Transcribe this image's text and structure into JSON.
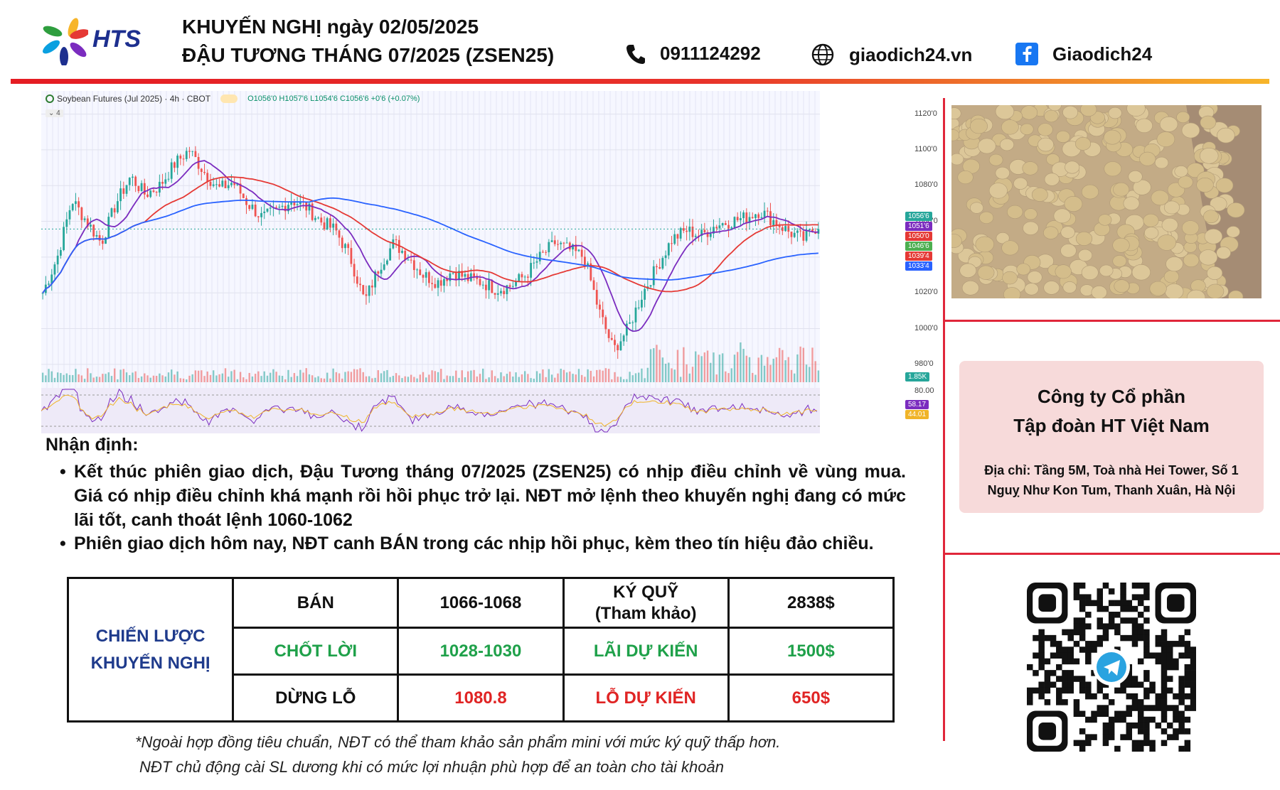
{
  "header": {
    "brand": "HTS",
    "title_line1": "KHUYẾN NGHỊ ngày 02/05/2025",
    "title_line2": "ĐẬU TƯƠNG THÁNG 07/2025 (ZSEN25)",
    "phone": "0911124292",
    "website": "giaodich24.vn",
    "facebook": "Giaodich24",
    "icons": [
      "phone-icon",
      "globe-icon",
      "facebook-icon"
    ]
  },
  "chart": {
    "legend_title": "Soybean Futures (Jul 2025) · 4h · CBOT",
    "legend_ohlc": "O1056'0 H1057'6 L1054'6 C1056'6 +0'6 (+0.07%)",
    "legend_sub": "4",
    "colors": {
      "up": "#26a69a",
      "down": "#ef5350",
      "ma_fast": "#7b2cbf",
      "ma_mid": "#e53935",
      "ma_slow": "#2962ff"
    }
  },
  "chart_data": {
    "type": "line",
    "title": "Soybean Futures (Jul 2025) · 4h · CBOT",
    "xlabel": "",
    "ylabel": "",
    "ylim": [
      970,
      1125
    ],
    "yticks": [
      "1120'0",
      "1100'0",
      "1080'0",
      "1060'0",
      "1020'0",
      "1000'0",
      "980'0"
    ],
    "series": [
      {
        "values": [
          1020,
          1040,
          1072,
          1060,
          1048,
          1070,
          1085,
          1075,
          1080,
          1092,
          1100,
          1088,
          1078,
          1082,
          1070,
          1062,
          1066,
          1072,
          1068,
          1060,
          1055,
          1040,
          1015,
          1035,
          1048,
          1040,
          1030,
          1026,
          1032,
          1028,
          1026,
          1022,
          1024,
          1030,
          1040,
          1048,
          1044,
          1040,
          1010,
          988,
          1000,
          1020,
          1035,
          1050,
          1055,
          1052,
          1058,
          1060,
          1062,
          1066,
          1060,
          1054,
          1050,
          1058
        ]
      }
    ],
    "price_labels": [
      "1056'6",
      "1051'6",
      "1050'0",
      "1046'6",
      "1039'4",
      "1033'4"
    ],
    "volume_label": "1.85K",
    "oscillator": {
      "level": "80.00",
      "values": [
        "58.17",
        "44.01"
      ]
    },
    "grid": true
  },
  "analysis": {
    "title": "Nhận định:",
    "bullets": [
      "Kết thúc phiên giao dịch, Đậu Tương tháng 07/2025 (ZSEN25) có nhịp điều chỉnh về vùng mua. Giá có nhịp điều chỉnh khá mạnh rồi hồi phục trở lại. NĐT mở lệnh theo khuyến nghị đang có mức lãi tốt, canh thoát lệnh 1060-1062",
      "Phiên giao dịch hôm nay, NĐT canh BÁN trong các nhịp hồi phục, kèm theo tín hiệu đảo chiều."
    ]
  },
  "strategy": {
    "head_line1": "CHIẾN LƯỢC",
    "head_line2": "KHUYẾN NGHỊ",
    "sell_label": "BÁN",
    "sell_value": "1066-1068",
    "margin_label_1": "KÝ QUỸ",
    "margin_label_2": "(Tham khảo)",
    "margin_value": "2838$",
    "tp_label": "CHỐT LỜI",
    "tp_value": "1028-1030",
    "profit_label": "LÃI DỰ KIẾN",
    "profit_value": "1500$",
    "sl_label": "DỪNG LỖ",
    "sl_value": "1080.8",
    "loss_label": "LỖ DỰ KIẾN",
    "loss_value": "650$"
  },
  "notes": [
    "*Ngoài hợp đồng tiêu chuẩn, NĐT có thể tham khảo sản phẩm mini với mức ký quỹ thấp hơn.",
    "NĐT chủ động cài SL dương khi có mức lợi nhuận phù hợp để an toàn cho tài khoản"
  ],
  "company": {
    "name_line1": "Công ty Cổ phần",
    "name_line2": "Tập đoàn HT Việt Nam",
    "address_line1": "Địa chỉ: Tầng 5M, Toà nhà Hei Tower, Số 1",
    "address_line2": "Nguỵ Như Kon Tum, Thanh Xuân, Hà Nội"
  }
}
